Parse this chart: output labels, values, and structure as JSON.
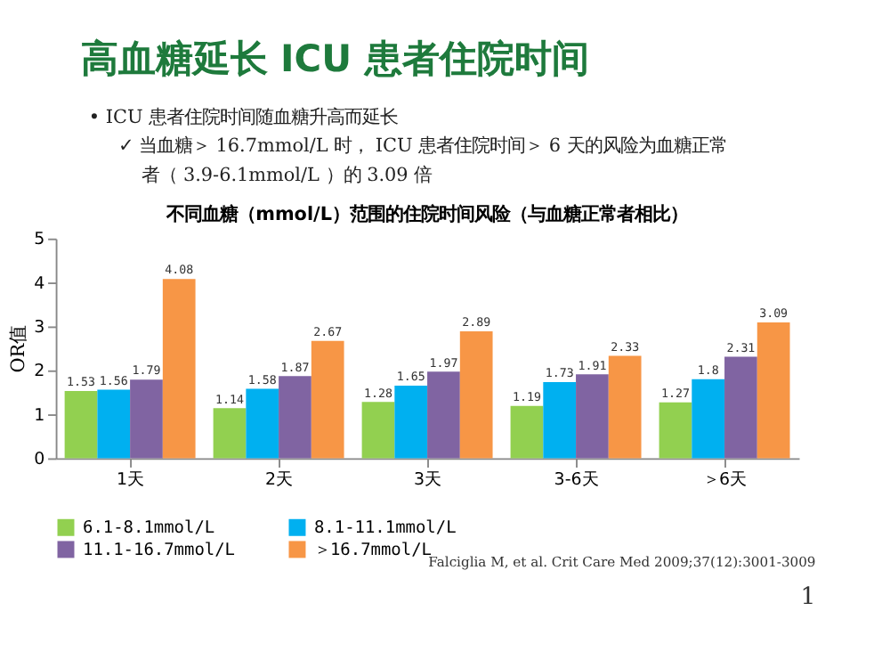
{
  "chart_data": {
    "type": "bar",
    "title": "高血糖延长 ICU 患者住院时间",
    "subtitle": "不同血糖（mmol/L）范围的住院时间风险（与血糖正常者相比）",
    "ylabel": "OR值",
    "categories": [
      "1天",
      "2天",
      "3天",
      "3-6天",
      "＞6天"
    ],
    "series": [
      {
        "name": "6.1-8.1mmol/L",
        "color": "#92d050",
        "values": [
          1.53,
          1.14,
          1.28,
          1.19,
          1.27
        ]
      },
      {
        "name": "8.1-11.1mmol/L",
        "color": "#00b0f0",
        "values": [
          1.56,
          1.58,
          1.65,
          1.73,
          1.8
        ]
      },
      {
        "name": "11.1-16.7mmol/L",
        "color": "#8064a2",
        "values": [
          1.79,
          1.87,
          1.97,
          1.91,
          2.31
        ]
      },
      {
        "name": "＞16.7mmol/L",
        "color": "#f79646",
        "values": [
          4.08,
          2.67,
          2.89,
          2.33,
          3.09
        ]
      }
    ],
    "ylim": [
      0,
      5
    ],
    "yticks": [
      0,
      1,
      2,
      3,
      4,
      5
    ],
    "grid": false,
    "legend": "bottom",
    "data_labels": true,
    "annotations": [
      "• ICU 患者住院时间随血糖升高而延长",
      "✓ 当血糖＞ 16.7mmol/L 时， ICU 患者住院时间＞ 6 天的风险为血糖正常",
      "者（ 3.9-6.1mmol/L ）的 3.09 倍",
      "Falciglia M, et al. Crit Care Med 2009;37(12):3001-3009",
      "1"
    ]
  }
}
